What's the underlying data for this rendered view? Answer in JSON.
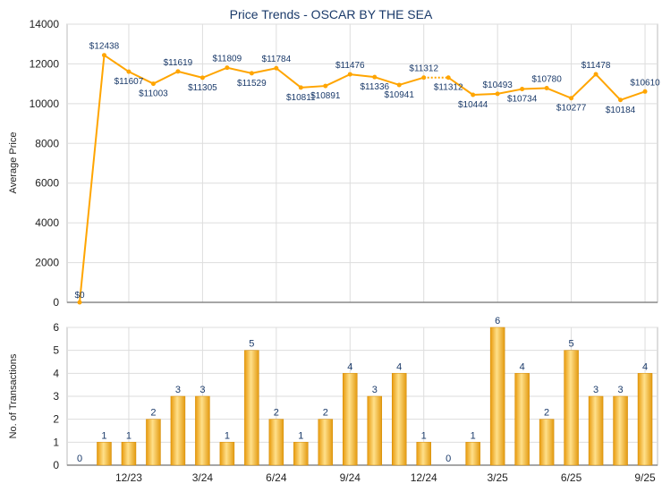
{
  "chart_data": [
    {
      "type": "line",
      "title": "Price Trends - OSCAR BY THE SEA",
      "ylabel": "Average Price",
      "ylim": [
        0,
        14000
      ],
      "yticks": [
        0,
        2000,
        4000,
        6000,
        8000,
        10000,
        12000,
        14000
      ],
      "values": [
        0,
        12438,
        11607,
        11003,
        11619,
        11305,
        11809,
        11529,
        11784,
        10811,
        10891,
        11476,
        11336,
        10941,
        11312,
        11312,
        10444,
        10493,
        10734,
        10780,
        10277,
        11478,
        10184,
        10610
      ],
      "labels": [
        "$0",
        "$12438",
        "$11607",
        "$11003",
        "$11619",
        "$11305",
        "$11809",
        "$11529",
        "$11784",
        "$10811",
        "$10891",
        "$11476",
        "$11336",
        "$10941",
        "$11312",
        "$11312",
        "$10444",
        "$10493",
        "$10734",
        "$10780",
        "$10277",
        "$11478",
        "$10184",
        "$10610"
      ],
      "color": "#FFA500",
      "grid": true
    },
    {
      "type": "bar",
      "ylabel": "No. of Transactions",
      "ylim": [
        0,
        6
      ],
      "yticks": [
        0,
        1,
        2,
        3,
        4,
        5,
        6
      ],
      "values": [
        0,
        1,
        1,
        2,
        3,
        3,
        1,
        5,
        2,
        1,
        2,
        4,
        3,
        4,
        1,
        0,
        1,
        6,
        4,
        2,
        5,
        3,
        3,
        4
      ],
      "xtick_labels": [
        {
          "index": 2,
          "label": "12/23"
        },
        {
          "index": 5,
          "label": "3/24"
        },
        {
          "index": 8,
          "label": "6/24"
        },
        {
          "index": 11,
          "label": "9/24"
        },
        {
          "index": 14,
          "label": "12/24"
        },
        {
          "index": 17,
          "label": "3/25"
        },
        {
          "index": 20,
          "label": "6/25"
        },
        {
          "index": 23,
          "label": "9/25"
        }
      ],
      "color": "#F5B41E",
      "grid": true
    }
  ]
}
